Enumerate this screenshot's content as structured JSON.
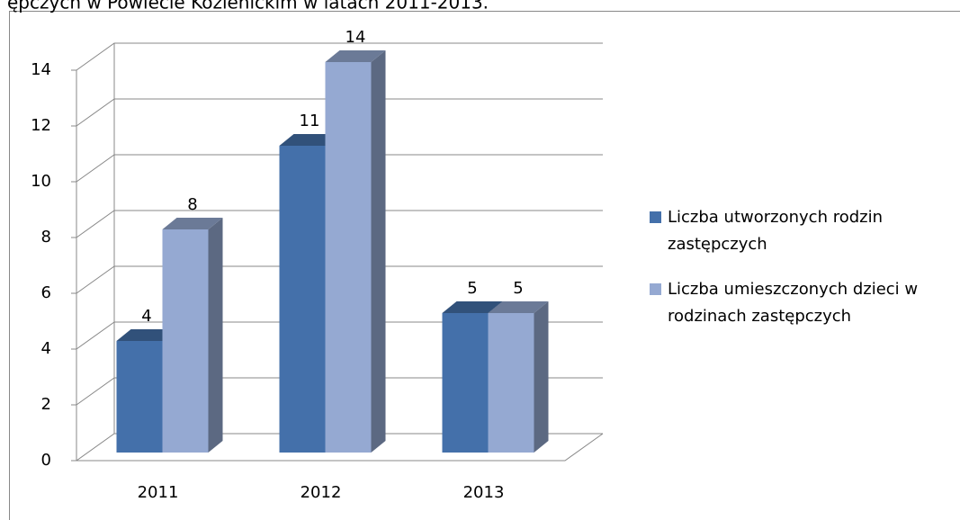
{
  "chart_data": {
    "type": "bar3d",
    "title": "ępczych w Powiecie Kozienickim w latach 2011-2013.",
    "categories": [
      "2011",
      "2012",
      "2013"
    ],
    "series": [
      {
        "name": "Liczba utworzonych rodzin zastępczych",
        "color": "#4470aa",
        "values": [
          4,
          11,
          5
        ]
      },
      {
        "name": "Liczba umieszczonych dzieci w rodzinach zastępczych",
        "color": "#95a9d2",
        "values": [
          8,
          14,
          5
        ]
      }
    ],
    "ylim": [
      0,
      14
    ],
    "yticks": [
      0,
      2,
      4,
      6,
      8,
      10,
      12,
      14
    ],
    "grid": true,
    "legend": "right"
  }
}
